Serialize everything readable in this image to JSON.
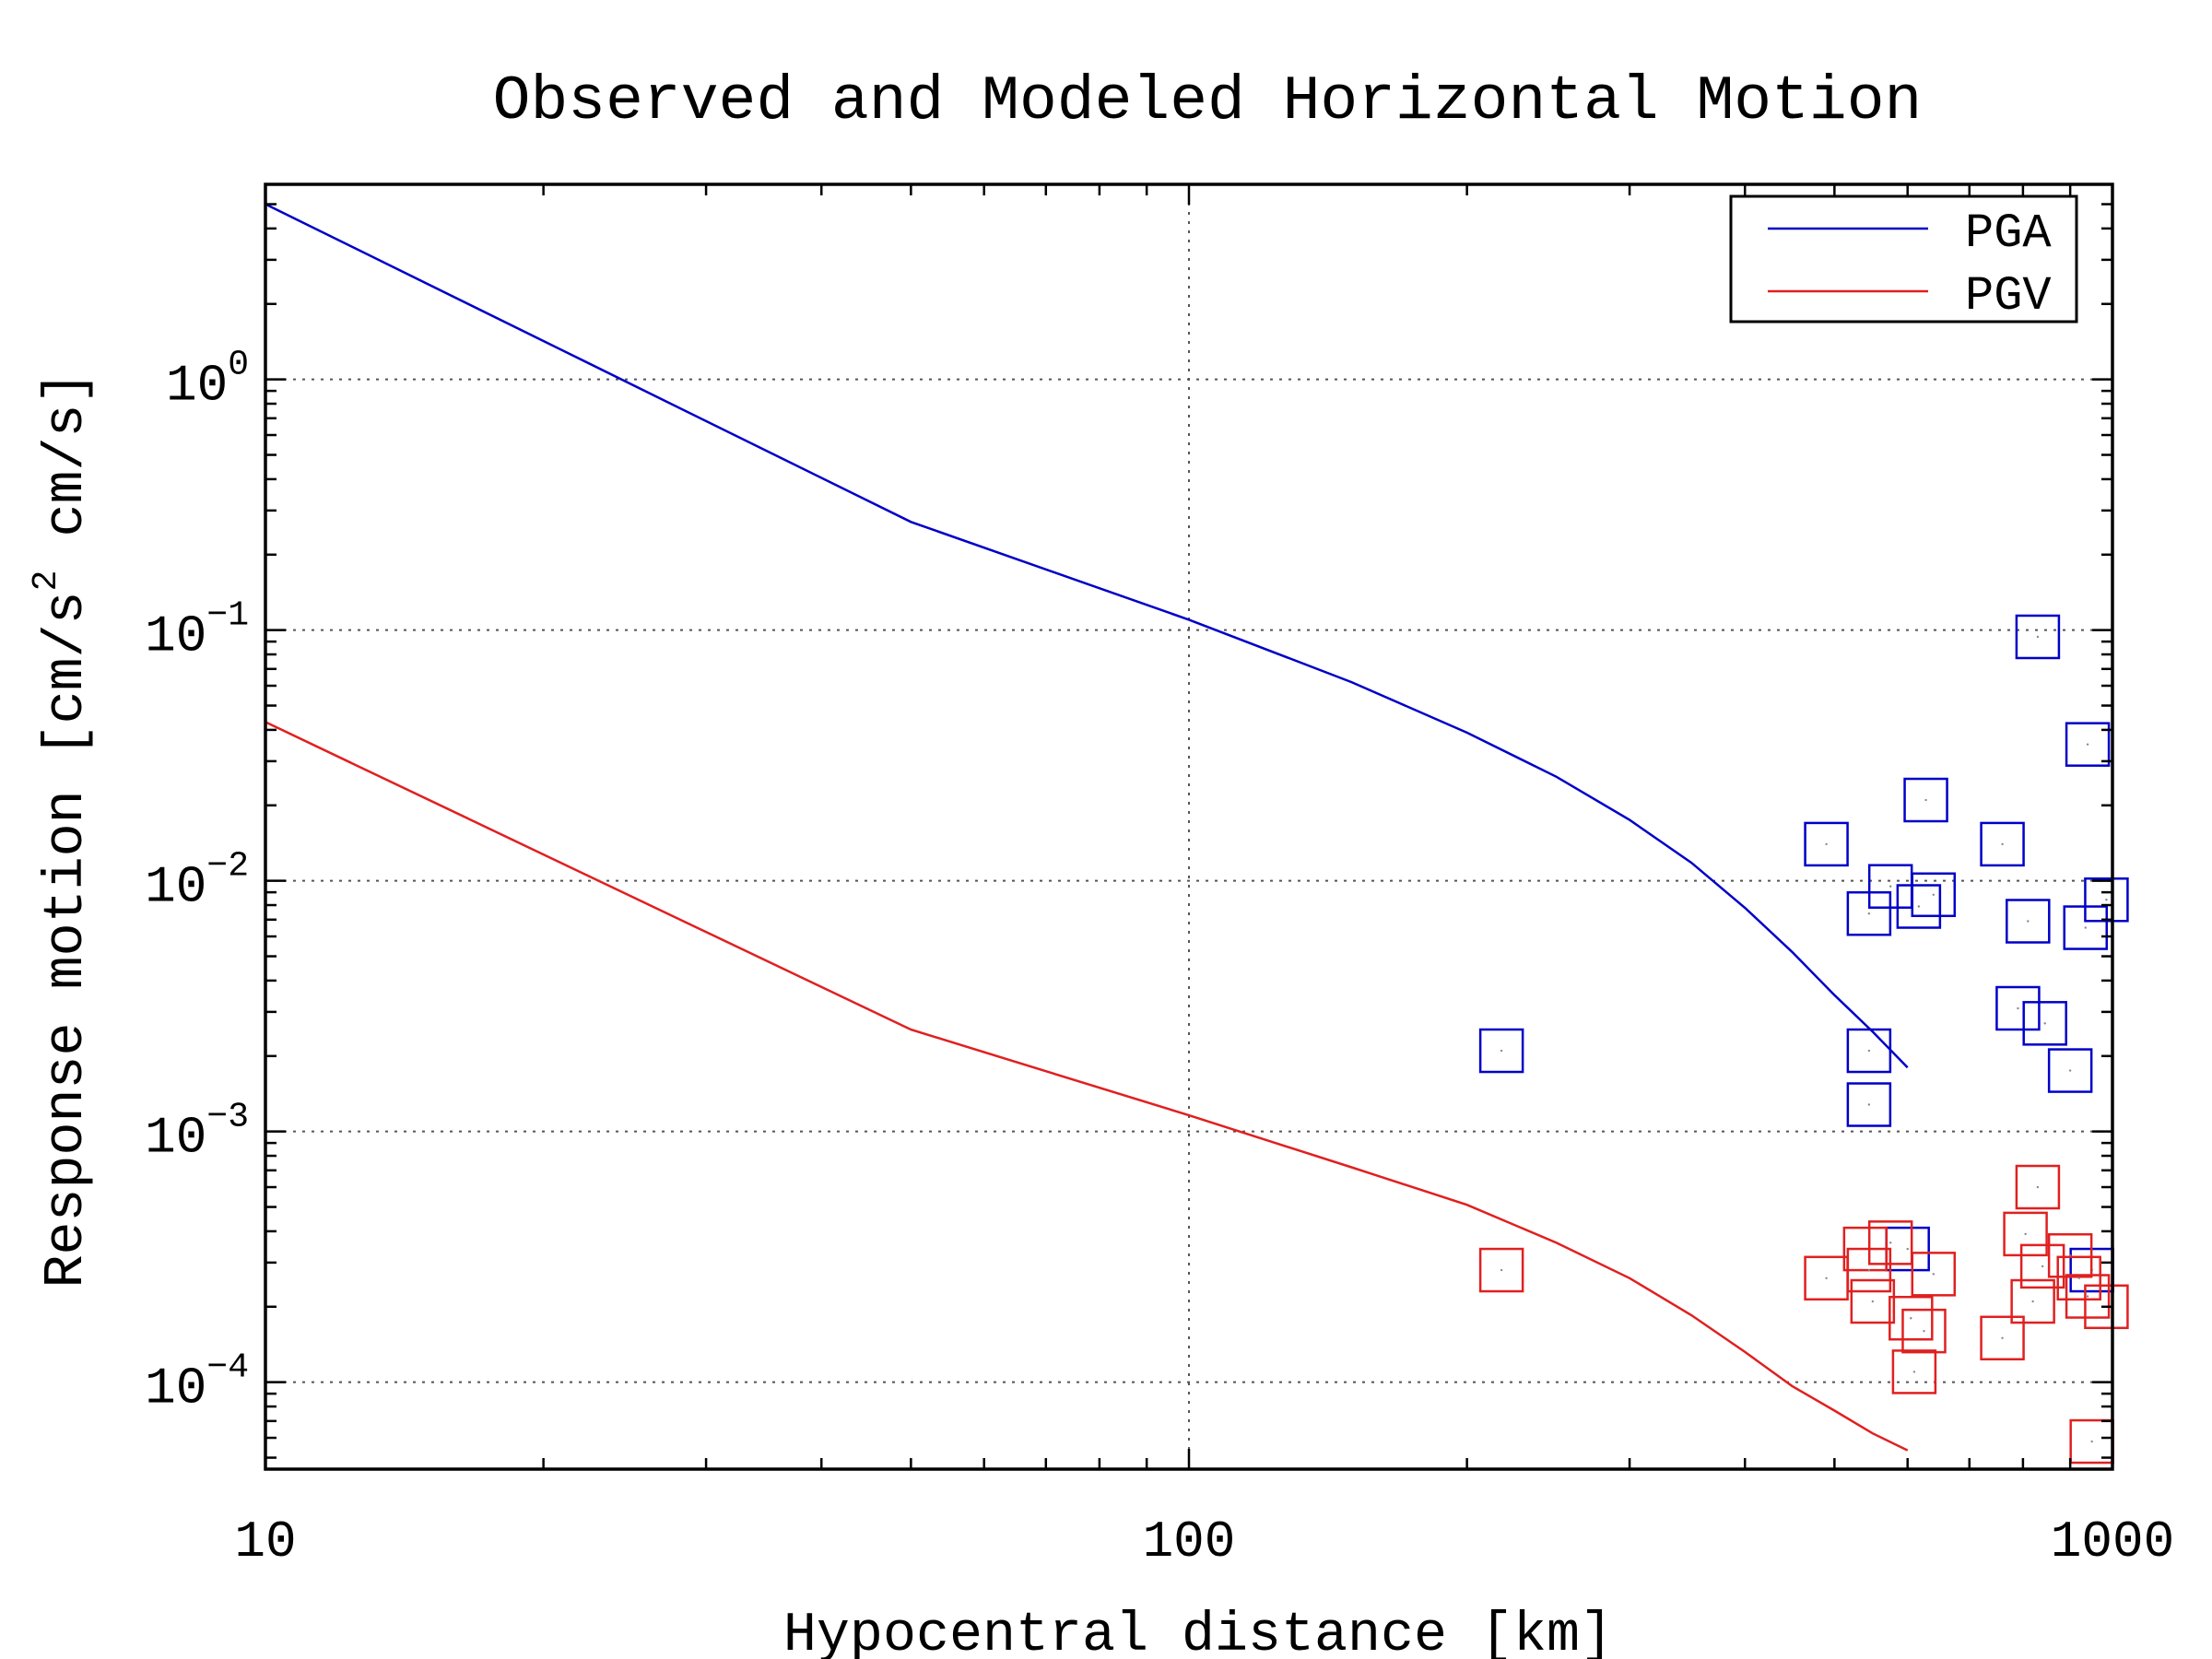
{
  "chart_data": {
    "type": "scatter",
    "title": "Observed and Modeled Horizontal Motion",
    "xlabel": "Hypocentral distance [km]",
    "ylabel": "Response motion [cm/s",
    "ylabel_exponent": "2",
    "ylabel_tail": " cm/s]",
    "xscale": "log",
    "yscale": "log",
    "xlim": [
      10,
      1000
    ],
    "ylim": [
      4.5e-05,
      6
    ],
    "x_ticks": [
      {
        "value": 10,
        "label": "10"
      },
      {
        "value": 100,
        "label": "100"
      },
      {
        "value": 1000,
        "label": "1000"
      }
    ],
    "y_ticks": [
      {
        "value": 1,
        "base": "10",
        "exponent": "0"
      },
      {
        "value": 0.1,
        "base": "10",
        "exponent": "−1"
      },
      {
        "value": 0.01,
        "base": "10",
        "exponent": "−2"
      },
      {
        "value": 0.001,
        "base": "10",
        "exponent": "−3"
      },
      {
        "value": 0.0001,
        "base": "10",
        "exponent": "−4"
      }
    ],
    "grid": true,
    "legend": {
      "position": "top-right",
      "entries": [
        {
          "label": "PGA",
          "color": "#0000c8"
        },
        {
          "label": "PGV",
          "color": "#e02020"
        }
      ]
    },
    "series": [
      {
        "name": "PGA",
        "kind": "line",
        "color": "#0000c8",
        "points": [
          [
            10,
            5.0
          ],
          [
            50,
            0.27
          ],
          [
            100,
            0.11
          ],
          [
            150,
            0.062
          ],
          [
            200,
            0.039
          ],
          [
            250,
            0.026
          ],
          [
            300,
            0.0175
          ],
          [
            350,
            0.0118
          ],
          [
            400,
            0.0078
          ],
          [
            450,
            0.0052
          ],
          [
            500,
            0.0035
          ],
          [
            550,
            0.0025
          ],
          [
            600,
            0.0018
          ]
        ]
      },
      {
        "name": "PGV",
        "kind": "line",
        "color": "#e02020",
        "points": [
          [
            10,
            0.043
          ],
          [
            50,
            0.00255
          ],
          [
            100,
            0.00116
          ],
          [
            150,
            0.00072
          ],
          [
            200,
            0.00051
          ],
          [
            250,
            0.00036
          ],
          [
            300,
            0.00026
          ],
          [
            350,
            0.000185
          ],
          [
            400,
            0.000132
          ],
          [
            450,
            9.65e-05
          ],
          [
            500,
            7.7e-05
          ],
          [
            550,
            6.25e-05
          ],
          [
            600,
            5.35e-05
          ]
        ]
      },
      {
        "name": "PGA",
        "kind": "observed",
        "color": "#0000c8",
        "points": [
          [
            218,
            0.0021
          ],
          [
            490,
            0.014
          ],
          [
            545,
            0.0074
          ],
          [
            545,
            0.0021
          ],
          [
            545,
            0.00128
          ],
          [
            575,
            0.0095
          ],
          [
            600,
            0.00034
          ],
          [
            617,
            0.0079
          ],
          [
            628,
            0.021
          ],
          [
            640,
            0.0088
          ],
          [
            760,
            0.014
          ],
          [
            790,
            0.0031
          ],
          [
            810,
            0.0069
          ],
          [
            830,
            0.094
          ],
          [
            845,
            0.0027
          ],
          [
            900,
            0.00175
          ],
          [
            935,
            0.0065
          ],
          [
            940,
            0.035
          ],
          [
            950,
            0.00028
          ],
          [
            985,
            0.0084
          ]
        ]
      },
      {
        "name": "PGV",
        "kind": "observed",
        "color": "#e02020",
        "points": [
          [
            218,
            0.00028
          ],
          [
            490,
            0.00026
          ],
          [
            540,
            0.00034
          ],
          [
            545,
            0.00028
          ],
          [
            550,
            0.00021
          ],
          [
            575,
            0.00036
          ],
          [
            605,
            0.00018
          ],
          [
            610,
            0.00011
          ],
          [
            625,
            0.00016
          ],
          [
            640,
            0.00027
          ],
          [
            760,
            0.00015
          ],
          [
            805,
            0.00039
          ],
          [
            820,
            0.00021
          ],
          [
            830,
            0.0006
          ],
          [
            840,
            0.00029
          ],
          [
            900,
            0.00032
          ],
          [
            920,
            0.00026
          ],
          [
            940,
            0.00022
          ],
          [
            950,
            5.8e-05
          ],
          [
            985,
            0.0002
          ]
        ]
      }
    ]
  }
}
